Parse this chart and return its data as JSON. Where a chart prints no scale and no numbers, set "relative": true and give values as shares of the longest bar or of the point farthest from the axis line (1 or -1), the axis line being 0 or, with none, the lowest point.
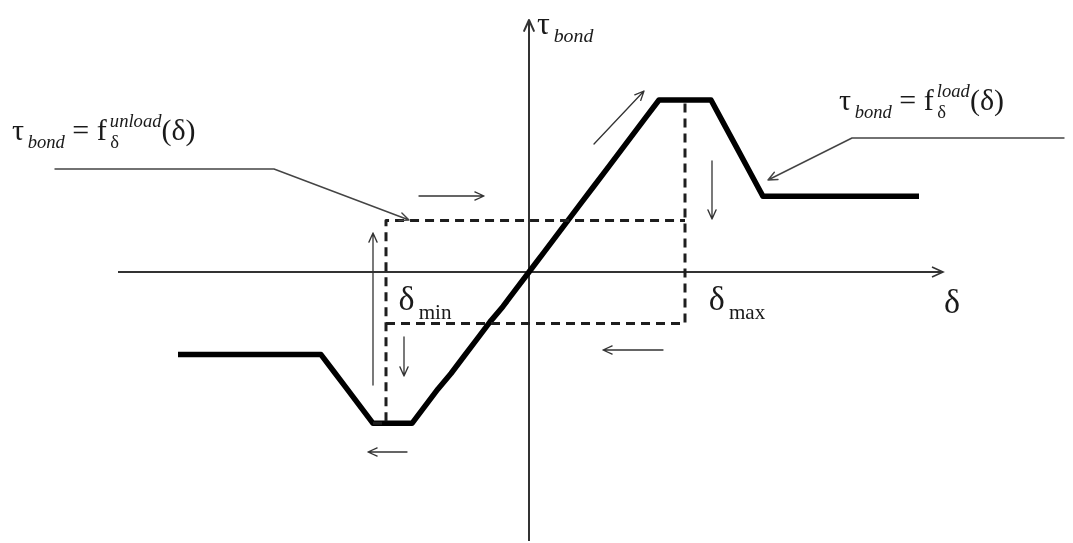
{
  "chart_data": {
    "type": "line",
    "relative": true,
    "xlabel": "δ",
    "ylabel": "τ$_{bond}$",
    "line_style": "solid",
    "categories": [
      null,
      null,
      null,
      null,
      null,
      null,
      null,
      null,
      null,
      null,
      null,
      null,
      null,
      null,
      null,
      null,
      null,
      null,
      null,
      "δ$_{min}$",
      null,
      null,
      null,
      null,
      null,
      null,
      null,
      null,
      null,
      null,
      null,
      null,
      null,
      null,
      null,
      null,
      null,
      null,
      null,
      null,
      null,
      null,
      null,
      "δ$_{max}$",
      null,
      null,
      null,
      null,
      null,
      null,
      null,
      null,
      null,
      null,
      null,
      null,
      null,
      null
    ],
    "series": [
      {
        "color": "#000000",
        "values": [
          -0.48,
          -0.48,
          -0.48,
          -0.48,
          -0.48,
          -0.48,
          -0.48,
          -0.48,
          -0.48,
          -0.48,
          -0.48,
          -0.48,
          -0.58,
          -0.68,
          -0.78,
          -0.88,
          -0.88,
          -0.88,
          -0.88,
          -0.78,
          -0.68,
          -0.59,
          -0.49,
          -0.39,
          -0.29,
          -0.2,
          -0.1,
          0,
          0.1,
          0.2,
          0.3,
          0.4,
          0.5,
          0.6,
          0.7,
          0.8,
          0.9,
          1,
          1,
          1,
          1,
          1,
          0.86,
          0.72,
          0.58,
          0.44,
          0.44,
          0.44,
          0.44,
          0.44,
          0.44,
          0.44,
          0.44,
          0.44,
          0.44,
          0.44,
          0.44,
          0.44
        ]
      },
      {
        "type": "step",
        "color": "#1e1e1e",
        "line_style": "dashed",
        "values": [
          null,
          null,
          null,
          null,
          null,
          null,
          null,
          null,
          null,
          null,
          null,
          null,
          null,
          null,
          null,
          null,
          -0.3,
          -0.3,
          -0.3,
          -0.3,
          -0.3,
          -0.3,
          -0.3,
          -0.3,
          -0.3,
          -0.3,
          -0.3,
          -0.3,
          -0.3,
          -0.3,
          -0.3,
          -0.3,
          -0.3,
          -0.3,
          -0.3,
          -0.3,
          -0.3,
          -0.3,
          -0.3,
          1,
          null,
          null,
          null,
          null,
          null,
          null,
          null,
          null,
          null,
          null,
          null,
          null,
          null,
          null,
          null,
          null,
          null,
          null
        ]
      },
      {
        "type": "step",
        "color": "#1e1e1e",
        "line_style": "dashed",
        "values": [
          null,
          null,
          null,
          null,
          null,
          null,
          null,
          null,
          null,
          null,
          null,
          null,
          null,
          null,
          null,
          -0.88,
          0.3,
          0.3,
          0.3,
          0.3,
          0.3,
          0.3,
          0.3,
          0.3,
          0.3,
          0.3,
          0.3,
          0.3,
          0.3,
          0.3,
          0.3,
          0.3,
          0.3,
          0.3,
          0.3,
          0.3,
          0.3,
          0.3,
          0.3,
          0.3,
          null,
          null,
          null,
          null,
          null,
          null,
          null,
          null,
          null,
          null,
          null,
          null,
          null,
          null,
          null,
          null,
          null,
          null
        ]
      }
    ],
    "annotations": [
      "τ$_{bond}$ = f$_{δ}$$^{unload}$(δ)",
      "τ$_{bond}$ = f$_{δ}$$^{load}$(δ)"
    ]
  }
}
